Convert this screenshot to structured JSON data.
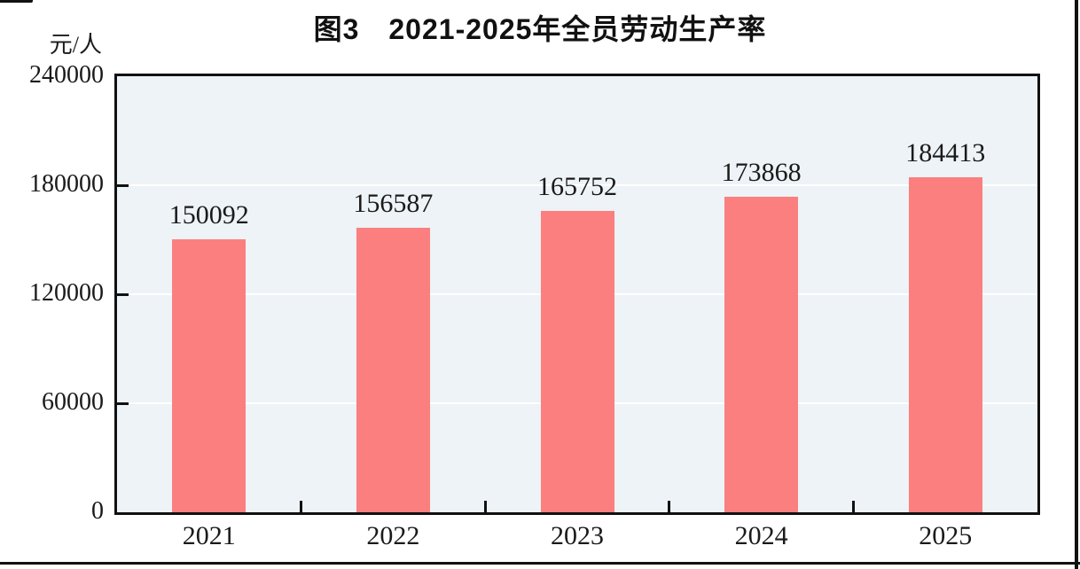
{
  "chart_data": {
    "type": "bar",
    "title": "图3　2021-2025年全员劳动生产率",
    "unit_label": "元/人",
    "categories": [
      "2021",
      "2022",
      "2023",
      "2024",
      "2025"
    ],
    "values": [
      150092,
      156587,
      165752,
      173868,
      184413
    ],
    "value_labels": [
      "150092",
      "156587",
      "165752",
      "173868",
      "184413"
    ],
    "ylim": [
      0,
      240000
    ],
    "ytick_interval": 60000,
    "ytick_labels_top_to_bottom": [
      "240000",
      "180000",
      "120000",
      "60000",
      "0"
    ],
    "legend": "none",
    "grid": "horizontal-white-lines-at-yticks",
    "tick_direction": "in",
    "colors": {
      "bar_fill": "#FB7F7F",
      "plot_background": "#EDF3F6",
      "gridline": "#FFFFFF",
      "axis_frame": "#111111",
      "text": "#1a1a1a",
      "page_background": "#FFFFFF"
    }
  }
}
